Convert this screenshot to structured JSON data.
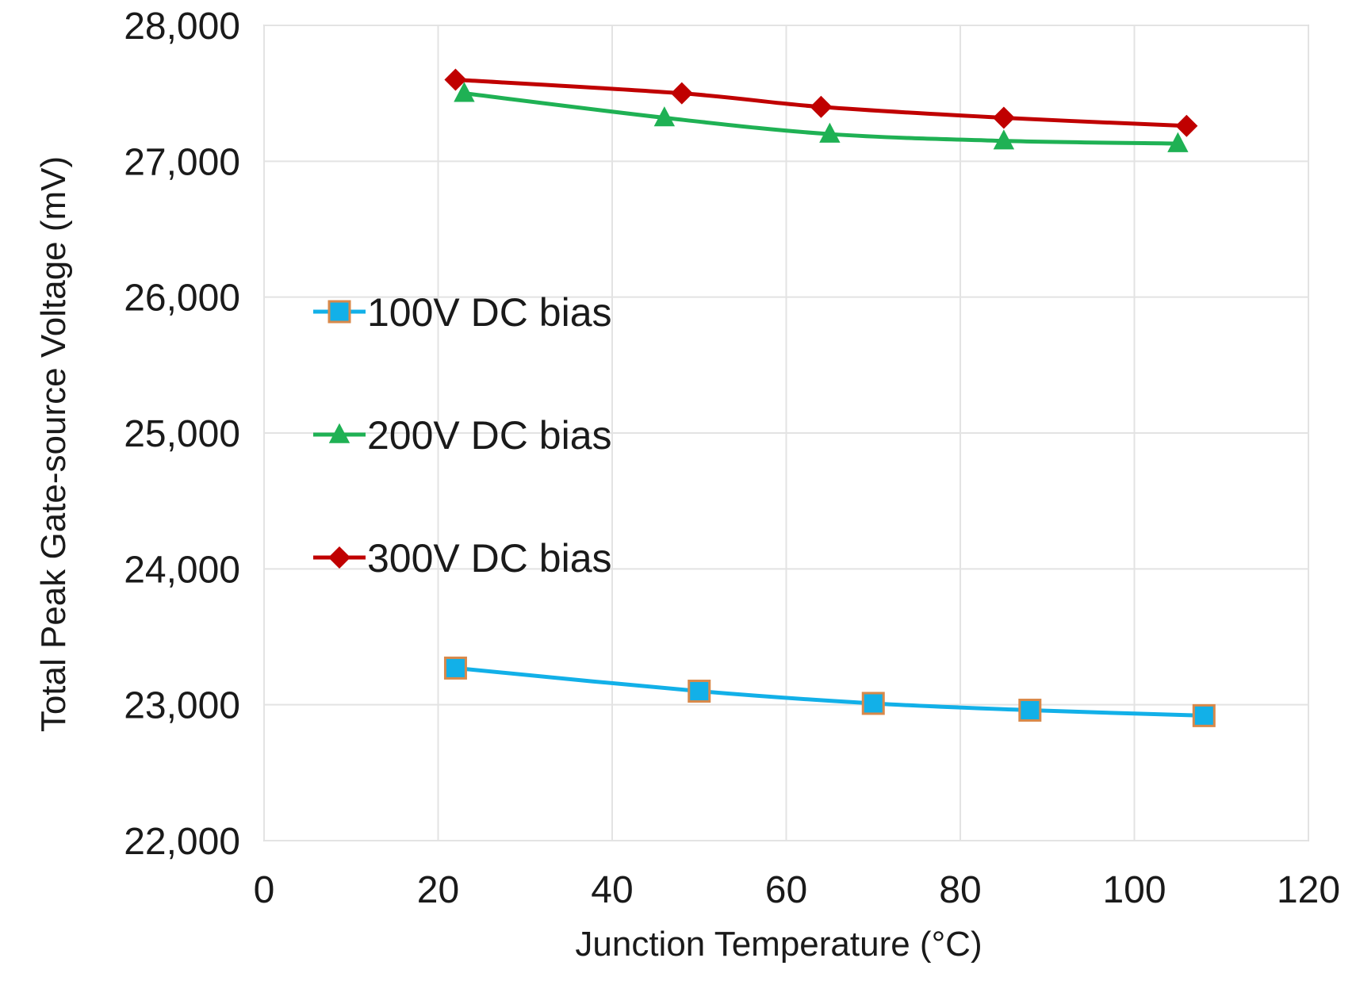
{
  "chart_data": {
    "type": "line",
    "title": "",
    "xlabel": "Junction Temperature (°C)",
    "ylabel": "Total Peak Gate-source Voltage (mV)",
    "xlim": [
      0,
      120
    ],
    "ylim": [
      22000,
      28000
    ],
    "xticks": [
      0,
      20,
      40,
      60,
      80,
      100,
      120
    ],
    "yticks": [
      22000,
      23000,
      24000,
      25000,
      26000,
      27000,
      28000
    ],
    "xtick_labels": [
      "0",
      "20",
      "40",
      "60",
      "80",
      "100",
      "120"
    ],
    "ytick_labels": [
      "22,000",
      "23,000",
      "24,000",
      "25,000",
      "26,000",
      "27,000",
      "28,000"
    ],
    "grid": true,
    "legend_position": "center-left",
    "series": [
      {
        "name": "100V DC bias",
        "color": "#12b0e8",
        "marker": "square",
        "marker_edge": "#d9894a",
        "x": [
          22,
          50,
          70,
          88,
          108
        ],
        "y": [
          23270,
          23100,
          23010,
          22960,
          22920
        ]
      },
      {
        "name": "200V DC bias",
        "color": "#1fb154",
        "marker": "triangle",
        "x": [
          23,
          46,
          65,
          85,
          105
        ],
        "y": [
          27500,
          27320,
          27200,
          27150,
          27130
        ]
      },
      {
        "name": "300V DC bias",
        "color": "#c00000",
        "marker": "diamond",
        "x": [
          22,
          48,
          64,
          85,
          106
        ],
        "y": [
          27600,
          27500,
          27400,
          27320,
          27260
        ]
      }
    ]
  }
}
